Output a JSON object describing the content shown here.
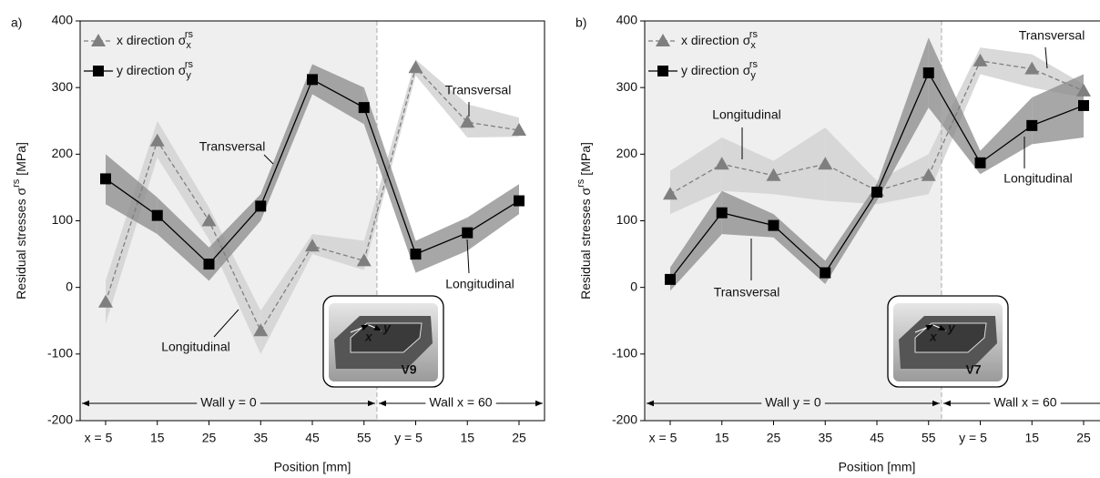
{
  "chart_data": [
    {
      "type": "line",
      "panel": "a)",
      "ylabel": "Residual stresses σ",
      "ylabel_sup": "rs",
      "ylabel_unit": "[MPa]",
      "xlabel": "Position [mm]",
      "categories": [
        "x = 5",
        "15",
        "25",
        "35",
        "45",
        "55",
        "y = 5",
        "15",
        "25"
      ],
      "ylim": [
        -200,
        400
      ],
      "yticks": [
        -200,
        -100,
        0,
        100,
        200,
        300,
        400
      ],
      "series": [
        {
          "name": "x direction σ",
          "sub": "x",
          "sup": "rs",
          "color": "#7f7f7f",
          "band_color": "#d2d2d2",
          "dashed": true,
          "marker": "triangle",
          "values": [
            -22,
            220,
            100,
            -65,
            62,
            40,
            330,
            248,
            236
          ],
          "lower": [
            -55,
            195,
            72,
            -100,
            50,
            26,
            318,
            225,
            226
          ],
          "upper": [
            10,
            250,
            120,
            -35,
            80,
            70,
            342,
            275,
            255
          ]
        },
        {
          "name": "y direction σ",
          "sub": "y",
          "sup": "rs",
          "color": "#000000",
          "band_color": "#8a8a8a",
          "dashed": false,
          "marker": "square",
          "values": [
            163,
            108,
            35,
            122,
            312,
            270,
            50,
            82,
            130
          ],
          "lower": [
            125,
            80,
            10,
            100,
            290,
            245,
            22,
            55,
            110
          ],
          "upper": [
            200,
            135,
            60,
            140,
            335,
            300,
            70,
            105,
            155
          ]
        }
      ],
      "regions": [
        "Wall y = 0",
        "Wall x = 60"
      ],
      "annotations": [
        "Transversal",
        "Transversal",
        "Longitudinal",
        "Longitudinal"
      ],
      "inset": {
        "label": "V9",
        "x": "x",
        "y": "y"
      }
    },
    {
      "type": "line",
      "panel": "b)",
      "ylabel": "Residual stresses σ",
      "ylabel_sup": "rs",
      "ylabel_unit": "[MPa]",
      "xlabel": "Position [mm]",
      "categories": [
        "x = 5",
        "15",
        "25",
        "35",
        "45",
        "55",
        "y = 5",
        "15",
        "25"
      ],
      "ylim": [
        -200,
        400
      ],
      "yticks": [
        -200,
        -100,
        0,
        100,
        200,
        300,
        400
      ],
      "series": [
        {
          "name": "x direction σ",
          "sub": "x",
          "sup": "rs",
          "color": "#7f7f7f",
          "band_color": "#d2d2d2",
          "dashed": true,
          "marker": "triangle",
          "values": [
            140,
            185,
            168,
            185,
            145,
            168,
            340,
            328,
            295
          ],
          "lower": [
            110,
            145,
            140,
            130,
            125,
            140,
            320,
            300,
            285
          ],
          "upper": [
            175,
            225,
            190,
            240,
            160,
            200,
            360,
            350,
            305
          ]
        },
        {
          "name": "y direction σ",
          "sub": "y",
          "sup": "rs",
          "color": "#000000",
          "band_color": "#8a8a8a",
          "dashed": false,
          "marker": "square",
          "values": [
            12,
            112,
            93,
            22,
            143,
            322,
            187,
            243,
            273
          ],
          "lower": [
            -5,
            80,
            75,
            5,
            130,
            270,
            170,
            215,
            225
          ],
          "upper": [
            30,
            145,
            110,
            40,
            155,
            375,
            205,
            285,
            320
          ]
        }
      ],
      "regions": [
        "Wall y = 0",
        "Wall x = 60"
      ],
      "annotations": [
        "Longitudinal",
        "Transversal",
        "Longitudinal",
        "Transversal"
      ],
      "inset": {
        "label": "V7",
        "x": "x",
        "y": "y"
      }
    }
  ]
}
